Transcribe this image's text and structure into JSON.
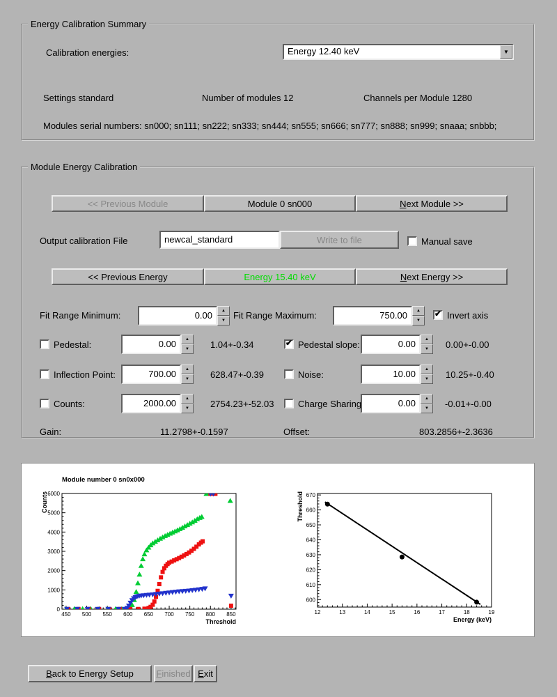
{
  "colors": {
    "green_text": "#00dd00",
    "page_bg": "#b4b4b4"
  },
  "summary": {
    "title": "Energy Calibration Summary",
    "cal_energies_label": "Calibration energies:",
    "energy_select_value": "Energy 12.40 keV",
    "settings_text": "Settings standard",
    "modules_text": "Number of modules 12",
    "channels_text": "Channels per Module 1280",
    "serials_text": "Modules serial numbers: sn000; sn111; sn222; sn333; sn444; sn555; sn666; sn777; sn888; sn999; snaaa; snbbb;"
  },
  "module_cal": {
    "title": "Module Energy Calibration",
    "prev_module_btn": "<< Previous Module",
    "module_btn": "Module 0 sn000",
    "next_module_btn": "Next Module >>",
    "output_file_label": "Output calibration File",
    "output_file_value": "newcal_standard",
    "write_to_file_btn": "Write to file",
    "manual_save_label": "Manual save",
    "manual_save_checked": false,
    "prev_energy_btn": "<< Previous Energy",
    "energy_btn": "Energy 15.40 keV",
    "next_energy_btn": "Next Energy >>",
    "fit_min_label": "Fit Range Minimum:",
    "fit_min_value": "0.00",
    "fit_max_label": "Fit Range Maximum:",
    "fit_max_value": "750.00",
    "invert_axis_label": "Invert axis",
    "invert_axis_checked": true,
    "params": {
      "pedestal": {
        "label": "Pedestal:",
        "value": "0.00",
        "result": "1.04+-0.34",
        "checked": false
      },
      "pedestal_slope": {
        "label": "Pedestal slope:",
        "value": "0.00",
        "result": "0.00+-0.00",
        "checked": true
      },
      "inflection": {
        "label": "Inflection Point:",
        "value": "700.00",
        "result": "628.47+-0.39",
        "checked": false
      },
      "noise": {
        "label": "Noise:",
        "value": "10.00",
        "result": "10.25+-0.40",
        "checked": false
      },
      "counts": {
        "label": "Counts:",
        "value": "2000.00",
        "result": "2754.23+-52.03",
        "checked": false
      },
      "charge_sharing": {
        "label": "Charge Sharing",
        "value": "0.00",
        "result": "-0.01+-0.00",
        "checked": false
      }
    },
    "gain_label": "Gain:",
    "gain_value": "11.2798+-0.1597",
    "offset_label": "Offset:",
    "offset_value": "803.2856+-2.3636"
  },
  "footer": {
    "back_btn": "Back to Energy Setup",
    "finished_btn": "Finished",
    "exit_btn": "Exit"
  },
  "chart_data": [
    {
      "type": "scatter",
      "title": "Module number 0 sn0x000",
      "xlabel": "Threshold",
      "ylabel": "Counts",
      "xlim": [
        440,
        862
      ],
      "ylim": [
        0,
        6000
      ],
      "xticks": [
        450,
        500,
        550,
        600,
        650,
        700,
        750,
        800,
        850
      ],
      "yticks": [
        0,
        1000,
        2000,
        3000,
        4000,
        5000,
        6000
      ],
      "series": [
        {
          "name": "series-green-triangles",
          "marker": "triangle-up",
          "color": "#00cc33",
          "points": [
            [
              450,
              15
            ],
            [
              470,
              15
            ],
            [
              490,
              15
            ],
            [
              510,
              15
            ],
            [
              530,
              15
            ],
            [
              550,
              15
            ],
            [
              570,
              15
            ],
            [
              585,
              15
            ],
            [
              595,
              25
            ],
            [
              600,
              45
            ],
            [
              605,
              95
            ],
            [
              610,
              220
            ],
            [
              615,
              480
            ],
            [
              620,
              900
            ],
            [
              624,
              1350
            ],
            [
              628,
              1800
            ],
            [
              632,
              2250
            ],
            [
              636,
              2600
            ],
            [
              640,
              2850
            ],
            [
              645,
              3060
            ],
            [
              650,
              3200
            ],
            [
              655,
              3320
            ],
            [
              660,
              3420
            ],
            [
              666,
              3500
            ],
            [
              672,
              3580
            ],
            [
              678,
              3660
            ],
            [
              684,
              3730
            ],
            [
              690,
              3800
            ],
            [
              696,
              3860
            ],
            [
              702,
              3920
            ],
            [
              708,
              3980
            ],
            [
              714,
              4040
            ],
            [
              720,
              4100
            ],
            [
              726,
              4160
            ],
            [
              732,
              4230
            ],
            [
              738,
              4300
            ],
            [
              744,
              4370
            ],
            [
              750,
              4440
            ],
            [
              756,
              4510
            ],
            [
              762,
              4590
            ],
            [
              768,
              4670
            ],
            [
              774,
              4740
            ],
            [
              779,
              4790
            ],
            [
              790,
              5980
            ],
            [
              795,
              5980
            ],
            [
              800,
              5980
            ],
            [
              848,
              5620
            ]
          ]
        },
        {
          "name": "series-red-squares",
          "marker": "square",
          "color": "#ee1111",
          "points": [
            [
              455,
              10
            ],
            [
              480,
              10
            ],
            [
              505,
              10
            ],
            [
              530,
              10
            ],
            [
              555,
              10
            ],
            [
              580,
              10
            ],
            [
              605,
              10
            ],
            [
              625,
              10
            ],
            [
              640,
              25
            ],
            [
              650,
              60
            ],
            [
              655,
              120
            ],
            [
              660,
              230
            ],
            [
              664,
              400
            ],
            [
              668,
              640
            ],
            [
              672,
              950
            ],
            [
              676,
              1300
            ],
            [
              680,
              1650
            ],
            [
              684,
              1930
            ],
            [
              688,
              2120
            ],
            [
              692,
              2250
            ],
            [
              696,
              2340
            ],
            [
              700,
              2410
            ],
            [
              706,
              2470
            ],
            [
              712,
              2530
            ],
            [
              718,
              2590
            ],
            [
              724,
              2650
            ],
            [
              730,
              2720
            ],
            [
              736,
              2790
            ],
            [
              742,
              2860
            ],
            [
              748,
              2940
            ],
            [
              754,
              3030
            ],
            [
              760,
              3130
            ],
            [
              766,
              3240
            ],
            [
              772,
              3360
            ],
            [
              777,
              3450
            ],
            [
              781,
              3520
            ],
            [
              800,
              5980
            ],
            [
              806,
              5980
            ],
            [
              812,
              5980
            ],
            [
              850,
              180
            ]
          ]
        },
        {
          "name": "series-blue-triangles",
          "marker": "triangle-down",
          "color": "#2233cc",
          "points": [
            [
              452,
              8
            ],
            [
              477,
              8
            ],
            [
              502,
              8
            ],
            [
              527,
              8
            ],
            [
              552,
              8
            ],
            [
              577,
              8
            ],
            [
              592,
              8
            ],
            [
              598,
              60
            ],
            [
              602,
              180
            ],
            [
              606,
              330
            ],
            [
              610,
              460
            ],
            [
              614,
              560
            ],
            [
              618,
              620
            ],
            [
              622,
              655
            ],
            [
              627,
              680
            ],
            [
              632,
              700
            ],
            [
              638,
              715
            ],
            [
              645,
              730
            ],
            [
              652,
              745
            ],
            [
              660,
              760
            ],
            [
              668,
              780
            ],
            [
              676,
              800
            ],
            [
              684,
              820
            ],
            [
              692,
              840
            ],
            [
              700,
              860
            ],
            [
              708,
              880
            ],
            [
              716,
              900
            ],
            [
              724,
              915
            ],
            [
              732,
              930
            ],
            [
              740,
              945
            ],
            [
              748,
              960
            ],
            [
              756,
              980
            ],
            [
              764,
              1000
            ],
            [
              772,
              1020
            ],
            [
              780,
              1045
            ],
            [
              787,
              1070
            ],
            [
              800,
              5980
            ],
            [
              807,
              5980
            ],
            [
              850,
              690
            ]
          ]
        }
      ]
    },
    {
      "type": "line",
      "title": "",
      "xlabel": "Energy (keV)",
      "ylabel": "Threshold",
      "xlim": [
        12,
        19
      ],
      "ylim": [
        595,
        671
      ],
      "xticks": [
        12,
        13,
        14,
        15,
        16,
        17,
        18,
        19
      ],
      "yticks": [
        600,
        610,
        620,
        630,
        640,
        650,
        660,
        670
      ],
      "series": [
        {
          "name": "calibration-points",
          "marker": "circle",
          "color": "#000000",
          "points": [
            [
              12.4,
              663.9
            ],
            [
              15.4,
              628.5
            ],
            [
              18.4,
              598.3
            ]
          ]
        }
      ],
      "fit_line": [
        [
          12.3,
          665.3
        ],
        [
          18.55,
          596.8
        ]
      ]
    }
  ]
}
